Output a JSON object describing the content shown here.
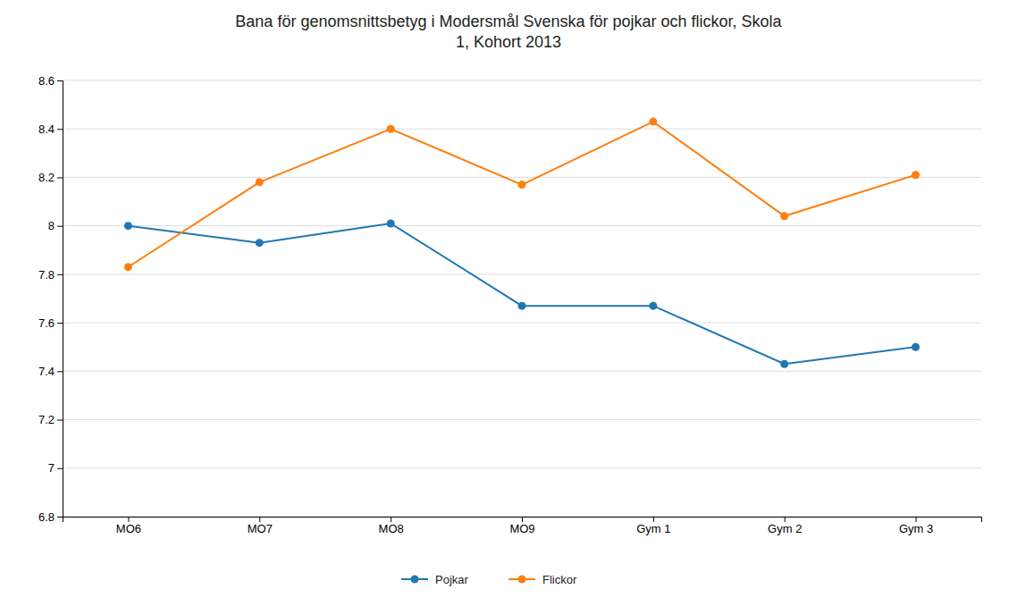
{
  "chart_data": {
    "type": "line",
    "title": "Bana för genomsnittsbetyg i Modersmål Svenska för pojkar och flickor, Skola\n1, Kohort 2013",
    "categories": [
      "MO6",
      "MO7",
      "MO8",
      "MO9",
      "Gym 1",
      "Gym 2",
      "Gym 3"
    ],
    "series": [
      {
        "name": "Pojkar",
        "values": [
          8.0,
          7.93,
          8.01,
          7.67,
          7.67,
          7.43,
          7.5
        ]
      },
      {
        "name": "Flickor",
        "values": [
          7.83,
          8.18,
          8.4,
          8.17,
          8.43,
          8.04,
          8.21
        ]
      }
    ],
    "ylim": [
      6.8,
      8.6
    ],
    "yticks": [
      6.8,
      7,
      7.2,
      7.4,
      7.6,
      7.8,
      8,
      8.2,
      8.4,
      8.6
    ],
    "grid": true,
    "legend": "bottom",
    "marker": "circle"
  }
}
